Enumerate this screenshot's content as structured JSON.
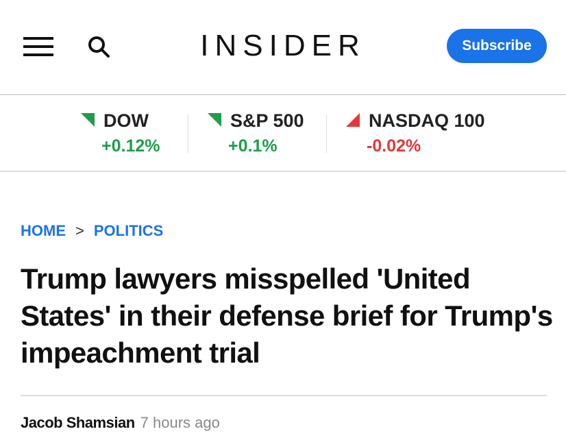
{
  "header": {
    "logo": "INSIDER",
    "subscribe": "Subscribe"
  },
  "tickers": [
    {
      "name": "DOW",
      "change": "+0.12%"
    },
    {
      "name": "S&P 500",
      "change": "+0.1%"
    },
    {
      "name": "NASDAQ 100",
      "change": "-0.02%"
    }
  ],
  "breadcrumb": [
    "HOME",
    "POLITICS"
  ],
  "article": {
    "headline": "Trump lawyers misspelled 'United States' in their defense brief for Trump's impeachment trial",
    "author": "Jacob Shamsian",
    "time": "7 hours ago"
  }
}
